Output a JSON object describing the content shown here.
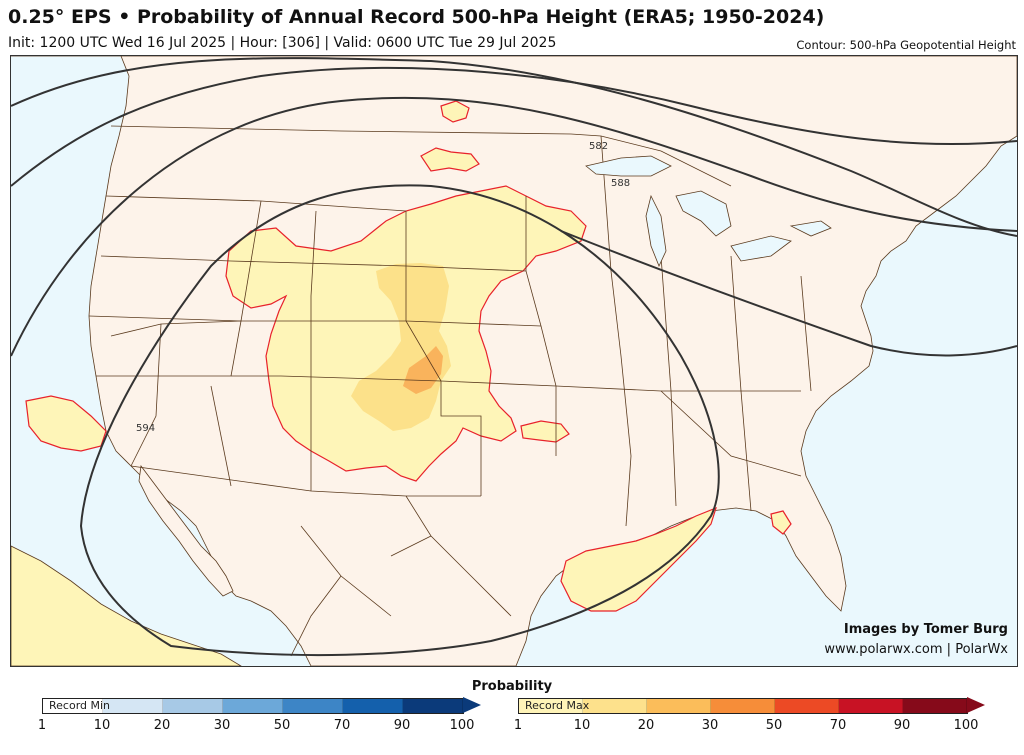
{
  "header": {
    "title": "0.25° EPS • Probability of Annual Record 500-hPa Height (ERA5; 1950-2024)",
    "subtitle": "Init: 1200 UTC Wed 16 Jul 2025 | Hour: [306] | Valid: 0600 UTC Tue 29 Jul 2025",
    "contour_note": "Contour: 500-hPa Geopotential Height"
  },
  "map": {
    "contour_labels": [
      "582",
      "588",
      "594"
    ],
    "colors": {
      "land": "#fdf3ea",
      "ocean": "#eaf8fd",
      "prob_low": "#fef5b8",
      "prob_mid": "#fce18a",
      "prob_high": "#f9b35c",
      "prob_outline": "#e8222b",
      "borders": "#5a3a1e",
      "contour": "#333333"
    }
  },
  "credits": {
    "line1": "Images by Tomer Burg",
    "line2": "www.polarwx.com | PolarWx"
  },
  "colorbar": {
    "title": "Probability",
    "min": {
      "label": "Record Min",
      "ticks": [
        "1",
        "10",
        "20",
        "30",
        "50",
        "70",
        "90",
        "100"
      ],
      "colors": [
        "#ffffff",
        "#d5e6f4",
        "#a7c9e6",
        "#6ca8d9",
        "#3d85c6",
        "#1460ac",
        "#0b3a7a"
      ]
    },
    "max": {
      "label": "Record Max",
      "ticks": [
        "1",
        "10",
        "20",
        "30",
        "50",
        "70",
        "90",
        "100"
      ],
      "colors": [
        "#fff4b8",
        "#fde18c",
        "#fbbd5a",
        "#f68d39",
        "#ec4a25",
        "#c81224",
        "#860a1a"
      ]
    }
  }
}
